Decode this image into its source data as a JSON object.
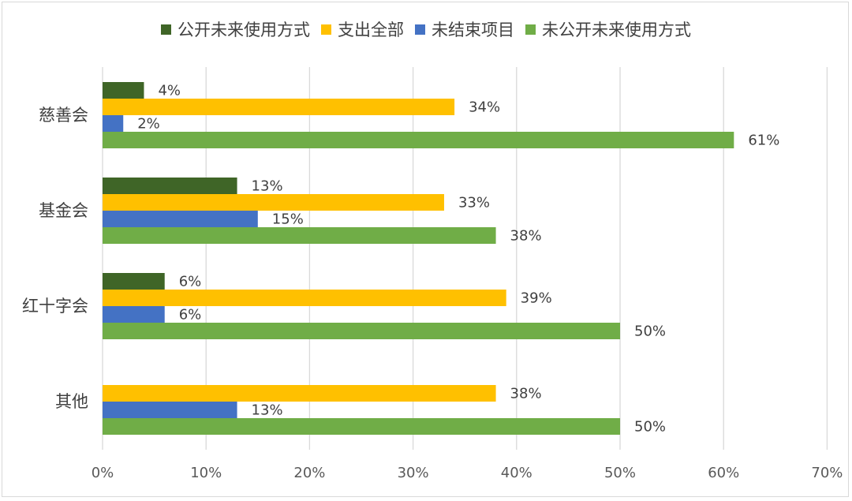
{
  "chart_data": {
    "type": "bar",
    "orientation": "horizontal",
    "categories": [
      "慈善会",
      "基金会",
      "红十字会",
      "其他"
    ],
    "series": [
      {
        "name": "公开未来使用方式",
        "color": "#3f6527",
        "values": [
          4,
          13,
          6,
          null
        ]
      },
      {
        "name": "支出全部",
        "color": "#ffc000",
        "values": [
          34,
          33,
          39,
          38
        ]
      },
      {
        "name": "未结束项目",
        "color": "#4472c4",
        "values": [
          2,
          15,
          6,
          13
        ]
      },
      {
        "name": "未公开未来使用方式",
        "color": "#70ad47",
        "values": [
          61,
          38,
          50,
          50
        ]
      }
    ],
    "xlim": [
      0,
      70
    ],
    "xticks": [
      "0%",
      "10%",
      "20%",
      "30%",
      "40%",
      "50%",
      "60%",
      "70%"
    ],
    "value_suffix": "%",
    "grid": true,
    "legend_position": "top"
  }
}
